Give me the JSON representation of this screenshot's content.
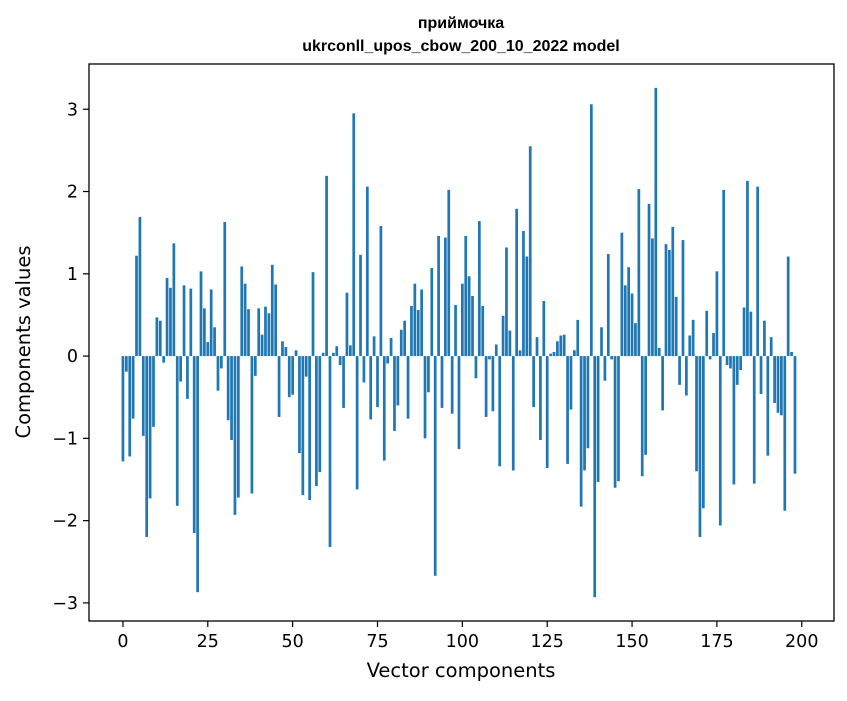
{
  "chart_data": {
    "type": "bar",
    "title_line1": "приймочка",
    "title_line2": "ukrconll_upos_cbow_200_10_2022 model",
    "xlabel": "Vector components",
    "ylabel": "Components values",
    "xlim": [
      -10,
      209.5
    ],
    "ylim": [
      -3.22,
      3.55
    ],
    "xticks": [
      0,
      25,
      50,
      75,
      100,
      125,
      150,
      175,
      200
    ],
    "xtick_labels": [
      "0",
      "25",
      "50",
      "75",
      "100",
      "125",
      "150",
      "175",
      "200"
    ],
    "yticks": [
      -3,
      -2,
      -1,
      0,
      1,
      2,
      3
    ],
    "ytick_labels": [
      "−3",
      "−2",
      "−1",
      "0",
      "1",
      "2",
      "3"
    ],
    "bar_color": "#1f77b4",
    "grid": false,
    "values": [
      -1.28,
      -0.19,
      -1.22,
      -0.76,
      1.22,
      1.69,
      -0.97,
      -2.2,
      -1.73,
      -0.86,
      0.47,
      0.43,
      -0.08,
      0.95,
      0.83,
      1.37,
      -1.82,
      -0.31,
      0.86,
      -0.52,
      0.82,
      -2.15,
      -2.87,
      1.03,
      0.58,
      0.17,
      0.81,
      0.35,
      -0.42,
      -0.15,
      1.63,
      -0.78,
      -1.02,
      -1.93,
      -1.72,
      1.09,
      0.88,
      0.57,
      -1.67,
      -0.24,
      0.58,
      0.26,
      0.6,
      0.52,
      1.11,
      0.87,
      -0.74,
      0.18,
      0.11,
      -0.5,
      -0.47,
      0.07,
      -1.18,
      -1.69,
      -0.25,
      -1.75,
      1.02,
      -1.58,
      -1.41,
      0.04,
      2.19,
      -2.32,
      0.04,
      0.12,
      -0.11,
      -0.63,
      0.77,
      0.13,
      2.95,
      -1.62,
      1.23,
      -0.32,
      2.06,
      -0.77,
      0.24,
      -0.62,
      1.58,
      -1.27,
      -0.09,
      0.22,
      -0.91,
      -0.6,
      0.32,
      0.43,
      -0.76,
      0.61,
      0.88,
      0.56,
      0.81,
      -1.0,
      -0.44,
      1.07,
      -2.67,
      1.46,
      -0.63,
      1.44,
      2.02,
      -0.7,
      0.62,
      -1.13,
      0.88,
      1.46,
      0.97,
      0.73,
      -0.27,
      1.64,
      0.61,
      -0.74,
      -0.04,
      -0.67,
      0.14,
      -1.34,
      0.49,
      1.32,
      0.31,
      -1.39,
      1.79,
      0.07,
      1.52,
      1.21,
      2.55,
      -0.62,
      0.23,
      -1.02,
      0.67,
      -1.36,
      0.03,
      0.05,
      0.18,
      0.25,
      0.26,
      -1.31,
      -0.65,
      0.07,
      0.44,
      -1.83,
      -1.39,
      -1.12,
      3.06,
      -2.93,
      -1.53,
      0.35,
      -0.3,
      1.24,
      -0.04,
      -1.6,
      -1.52,
      1.5,
      0.86,
      1.08,
      0.76,
      0.4,
      2.03,
      -1.46,
      -1.2,
      1.85,
      1.43,
      3.26,
      0.1,
      -0.66,
      1.36,
      1.29,
      1.57,
      0.72,
      -0.35,
      1.41,
      -0.48,
      0.25,
      0.44,
      -1.4,
      -2.2,
      -1.85,
      0.55,
      -0.04,
      0.28,
      1.03,
      -2.06,
      2.02,
      -0.11,
      -0.15,
      -1.56,
      -0.35,
      -0.17,
      0.59,
      2.13,
      0.54,
      -1.55,
      2.06,
      -0.46,
      0.43,
      -1.21,
      0.23,
      -0.57,
      -0.69,
      -0.72,
      -1.88,
      1.21,
      0.05,
      -1.43
    ]
  }
}
